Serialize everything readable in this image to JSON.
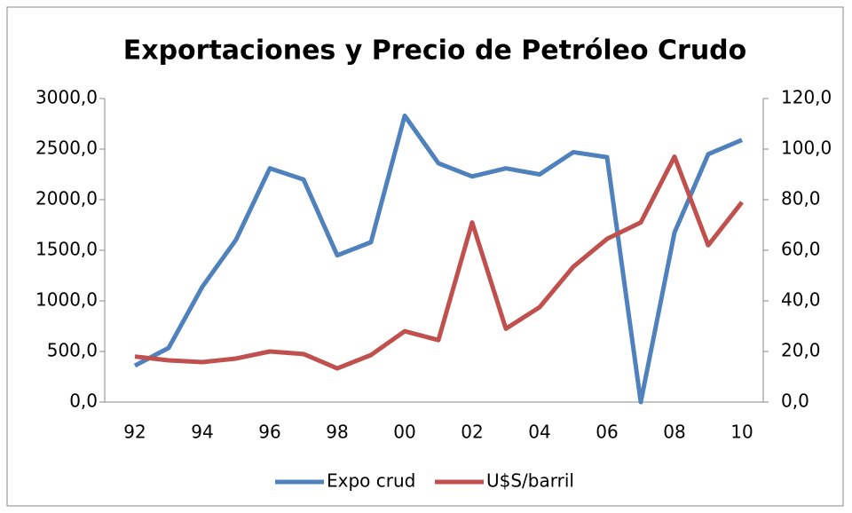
{
  "chart_data": {
    "type": "line",
    "title": "Exportaciones y Precio de Petróleo Crudo",
    "categories": [
      "92",
      null,
      "94",
      null,
      "96",
      null,
      "98",
      null,
      "00",
      null,
      "02",
      null,
      "04",
      null,
      "06",
      null,
      "08",
      null,
      "10"
    ],
    "series": [
      {
        "name": "Expo crud",
        "color": "#4f81bd",
        "values": [
          360,
          535,
          1140,
          1605,
          2310,
          2200,
          1450,
          1580,
          2830,
          2360,
          2230,
          2310,
          2250,
          2470,
          2420,
          0,
          1675,
          2450,
          2590
        ]
      },
      {
        "name": "U$S/barril",
        "color": "#c0504d",
        "axis": "y2",
        "values": [
          18,
          16.5,
          15.8,
          17.2,
          20,
          19,
          13.3,
          18.6,
          28,
          24.5,
          71,
          29,
          37.5,
          53.5,
          64.5,
          71,
          97,
          62,
          79
        ]
      }
    ],
    "ylim": [
      0,
      3000
    ],
    "yticks": [
      {
        "value": 0,
        "label": "0,0"
      },
      {
        "value": 500,
        "label": "500,0"
      },
      {
        "value": 1000,
        "label": "1000,0"
      },
      {
        "value": 1500,
        "label": "1500,0"
      },
      {
        "value": 2000,
        "label": "2000,0"
      },
      {
        "value": 2500,
        "label": "2500,0"
      },
      {
        "value": 3000,
        "label": "3000,0"
      }
    ],
    "y2lim": [
      0,
      120
    ],
    "y2ticks": [
      {
        "value": 0,
        "label": "0,0"
      },
      {
        "value": 20,
        "label": "20,0"
      },
      {
        "value": 40,
        "label": "40,0"
      },
      {
        "value": 60,
        "label": "60,0"
      },
      {
        "value": 80,
        "label": "80,0"
      },
      {
        "value": 100,
        "label": "100,0"
      },
      {
        "value": 120,
        "label": "120,0"
      }
    ],
    "legend": "bottom"
  }
}
